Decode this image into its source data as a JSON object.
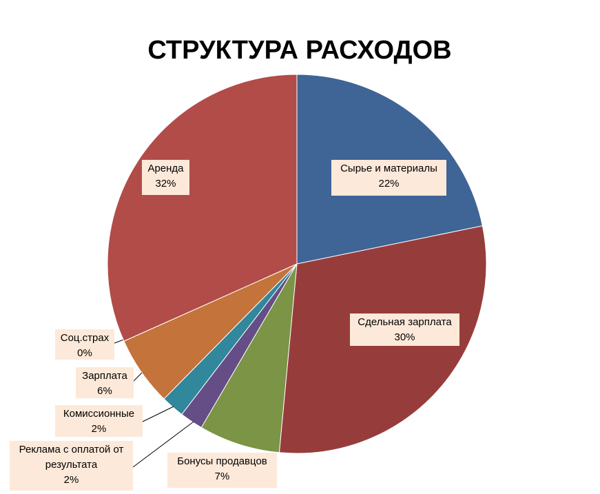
{
  "chart_data": {
    "type": "pie",
    "title": "СТРУКТУРА РАСХОДОВ",
    "categories": [
      "Сырье и материалы",
      "Сдельная зарплата",
      "Бонусы продавцов",
      "Реклама с оплатой от результата",
      "Комиссионные",
      "Зарплата",
      "Соц.страх",
      "Аренда"
    ],
    "values": [
      22,
      30,
      7,
      2,
      2,
      6,
      0,
      32
    ],
    "value_labels": [
      "22%",
      "30%",
      "7%",
      "2%",
      "2%",
      "6%",
      "0%",
      "32%"
    ],
    "colors": [
      "#3f6496",
      "#963d3c",
      "#7b9445",
      "#644e85",
      "#31879b",
      "#c4733a",
      "#8fa8d0",
      "#b14c49"
    ]
  }
}
